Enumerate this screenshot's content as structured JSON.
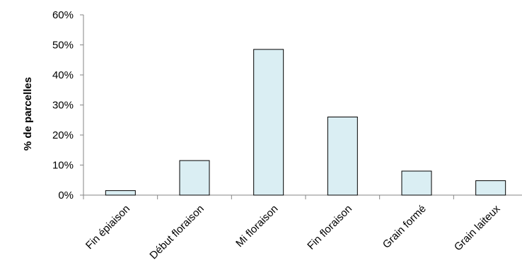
{
  "chart_data": {
    "type": "bar",
    "title": "",
    "xlabel": "",
    "ylabel": "% de parcelles",
    "categories": [
      "Fin épiaison",
      "Début floraison",
      "Mi floraison",
      "Fin floraison",
      "Grain formé",
      "Grain laiteux"
    ],
    "values": [
      1.5,
      11.5,
      48.5,
      26,
      8,
      4.8
    ],
    "ylim": [
      0,
      60
    ],
    "yticks": [
      "0%",
      "10%",
      "20%",
      "30%",
      "40%",
      "50%",
      "60%"
    ],
    "grid": false,
    "legend": "none",
    "colors": {
      "bar_fill": "#daeef3",
      "bar_stroke": "#000000",
      "axis": "#868686"
    }
  }
}
